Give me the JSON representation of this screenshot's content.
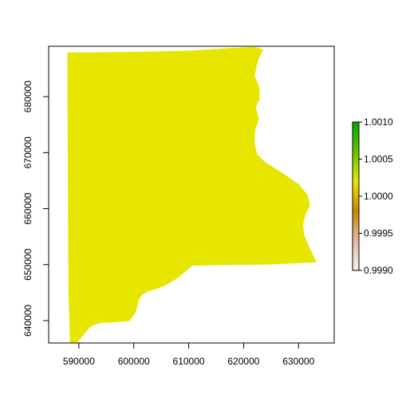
{
  "chart_data": {
    "type": "heatmap",
    "title": "",
    "xlabel": "",
    "ylabel": "",
    "xlim": [
      584500,
      636500
    ],
    "ylim": [
      636000,
      689000
    ],
    "x_ticks": [
      590000,
      600000,
      610000,
      620000,
      630000
    ],
    "x_tick_labels": [
      "590000",
      "600000",
      "610000",
      "620000",
      "630000"
    ],
    "y_ticks": [
      640000,
      650000,
      660000,
      670000,
      680000
    ],
    "y_tick_labels": [
      "640000",
      "650000",
      "660000",
      "670000",
      "680000"
    ],
    "raster_value": 1.0,
    "raster_color": "#e6e600",
    "region_outline": [
      [
        588000,
        687900
      ],
      [
        592000,
        687900
      ],
      [
        600000,
        688000
      ],
      [
        610000,
        688200
      ],
      [
        618000,
        688700
      ],
      [
        622000,
        688900
      ],
      [
        623600,
        688400
      ],
      [
        622700,
        686700
      ],
      [
        622000,
        683800
      ],
      [
        622900,
        681600
      ],
      [
        622900,
        679400
      ],
      [
        622200,
        678200
      ],
      [
        622800,
        676000
      ],
      [
        622100,
        674100
      ],
      [
        622000,
        671600
      ],
      [
        622500,
        669700
      ],
      [
        623800,
        668400
      ],
      [
        627000,
        666400
      ],
      [
        630000,
        664400
      ],
      [
        631700,
        662400
      ],
      [
        632100,
        660500
      ],
      [
        631300,
        659000
      ],
      [
        630800,
        657100
      ],
      [
        631100,
        655100
      ],
      [
        632200,
        652600
      ],
      [
        633300,
        650400
      ],
      [
        624000,
        650000
      ],
      [
        615000,
        649900
      ],
      [
        610700,
        649800
      ],
      [
        609800,
        649100
      ],
      [
        608000,
        647600
      ],
      [
        605800,
        646300
      ],
      [
        604000,
        645600
      ],
      [
        602600,
        645200
      ],
      [
        601500,
        644600
      ],
      [
        600900,
        643600
      ],
      [
        600400,
        641600
      ],
      [
        599200,
        639900
      ],
      [
        596500,
        639700
      ],
      [
        594200,
        639600
      ],
      [
        593000,
        639300
      ],
      [
        592000,
        638800
      ],
      [
        590800,
        637400
      ],
      [
        589600,
        636000
      ],
      [
        588400,
        636000
      ],
      [
        588100,
        645000
      ],
      [
        588000,
        665000
      ],
      [
        587900,
        687900
      ]
    ],
    "legend": {
      "min": 0.999,
      "max": 1.001,
      "ticks": [
        0.999,
        0.9995,
        1.0,
        1.0005,
        1.001
      ],
      "tick_labels": [
        "0.9990",
        "0.9995",
        "1.0000",
        "1.0005",
        "1.0010"
      ],
      "colors": [
        "#f2f2f2",
        "#e6b8a2",
        "#ca8600",
        "#e6e600",
        "#63c600",
        "#00a600"
      ]
    }
  }
}
